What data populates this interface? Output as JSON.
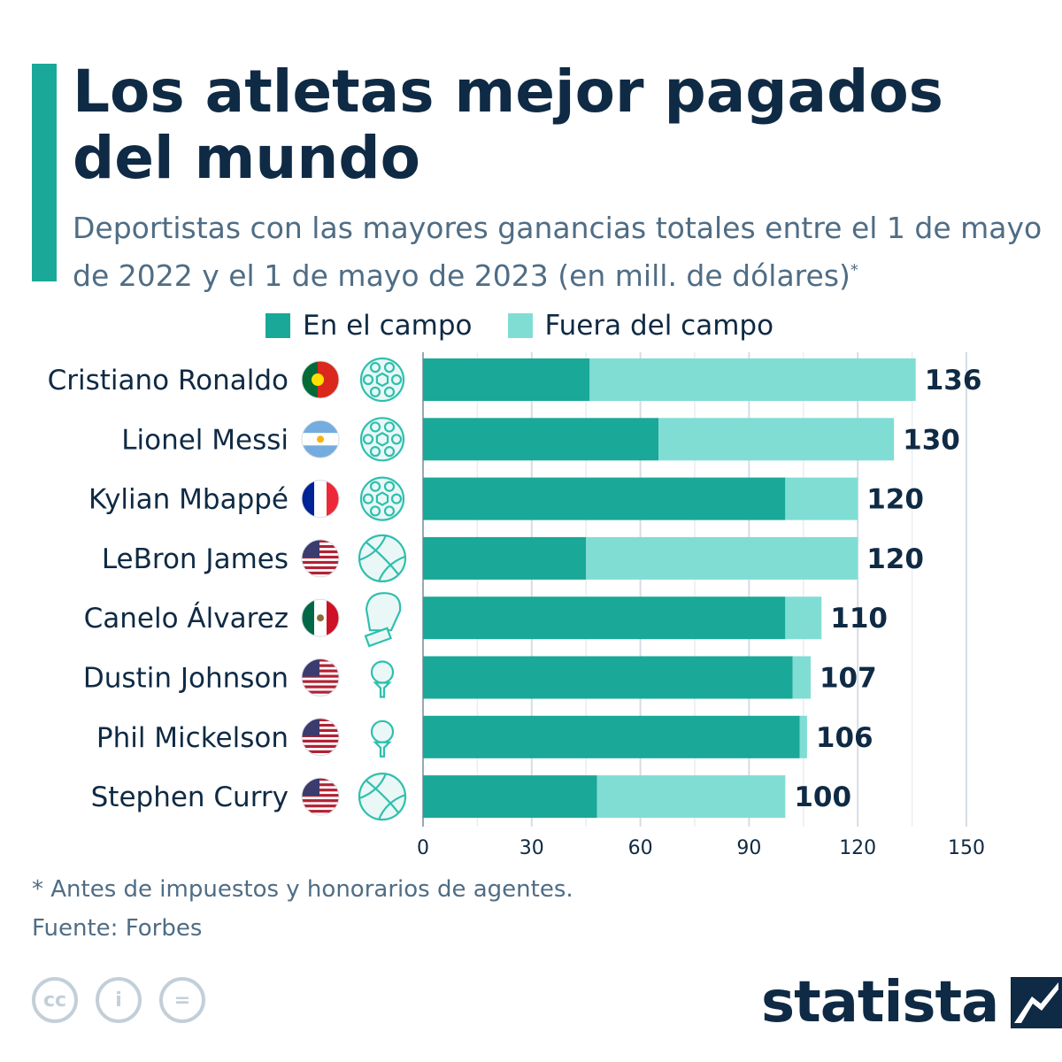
{
  "header": {
    "title": "Los atletas mejor pagados del mundo",
    "subtitle": "Deportistas con las mayores ganancias totales entre el 1 de mayo de 2022 y el 1 de mayo de 2023 (en mill. de dólares)",
    "subtitle_mark": "*"
  },
  "colors": {
    "accent": "#1aa898",
    "on_field": "#1aa898",
    "off_field": "#80ddd4",
    "title": "#0f2a44",
    "text_muted": "#4f6d85"
  },
  "legend": [
    {
      "label": "En el campo",
      "color": "#1aa898"
    },
    {
      "label": "Fuera del campo",
      "color": "#80ddd4"
    }
  ],
  "chart_data": {
    "type": "bar",
    "orientation": "horizontal",
    "stacked": true,
    "categories": [
      "Cristiano Ronaldo",
      "Lionel Messi",
      "Kylian Mbappé",
      "LeBron James",
      "Canelo Álvarez",
      "Dustin Johnson",
      "Phil Mickelson",
      "Stephen Curry"
    ],
    "series": [
      {
        "name": "En el campo",
        "color": "#1aa898",
        "values": [
          46,
          65,
          100,
          45,
          100,
          102,
          104,
          48
        ]
      },
      {
        "name": "Fuera del campo",
        "color": "#80ddd4",
        "values": [
          90,
          65,
          20,
          75,
          10,
          5,
          2,
          52
        ]
      }
    ],
    "totals": [
      136,
      130,
      120,
      120,
      110,
      107,
      106,
      100
    ],
    "xlim": [
      0,
      150
    ],
    "xticks": [
      0,
      30,
      60,
      90,
      120,
      150
    ],
    "grid": true,
    "legend_position": "top",
    "country_flags": [
      "portugal-flag",
      "argentina-flag",
      "france-flag",
      "usa-flag",
      "mexico-flag",
      "usa-flag",
      "usa-flag",
      "usa-flag"
    ],
    "sport_icons": [
      "soccer-ball-icon",
      "soccer-ball-icon",
      "soccer-ball-icon",
      "basketball-icon",
      "boxing-glove-icon",
      "golf-ball-icon",
      "golf-ball-icon",
      "basketball-icon"
    ]
  },
  "footer": {
    "note": "* Antes de impuestos y honorarios de agentes.",
    "source": "Fuente: Forbes",
    "license_icons": [
      "cc-icon",
      "attribution-icon",
      "no-derivatives-icon"
    ],
    "license_glyphs": [
      "cc",
      "i",
      "="
    ],
    "brand": "statista"
  }
}
